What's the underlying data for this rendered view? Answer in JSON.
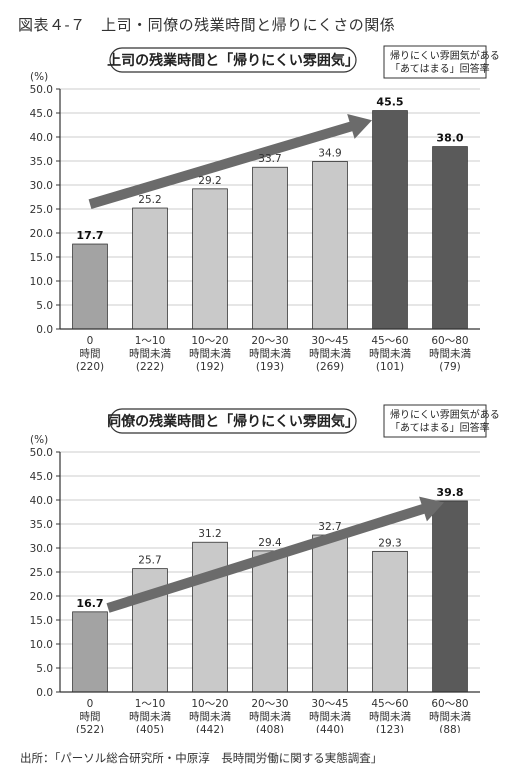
{
  "figure_title": "図表４-７　上司・同僚の残業時間と帰りにくさの関係",
  "source": "出所：「パーソル総合研究所・中原淳　長時間労働に関する実態調査」",
  "colors": {
    "light": "#c9c9c9",
    "medium": "#a3a3a3",
    "dark": "#5a5a5a",
    "arrow": "#6b6b6b",
    "grid": "#9a9a9a",
    "axis": "#333333"
  },
  "chart_data": [
    {
      "type": "bar",
      "title": "上司の残業時間と「帰りにくい雰囲気」",
      "legend": [
        "帰りにくい雰囲気がある",
        "「あてはまる」回答率"
      ],
      "ylabel": "(%)",
      "ylim": [
        0,
        50
      ],
      "ytick_step": 5,
      "categories": [
        [
          "0",
          "時間",
          "(220)"
        ],
        [
          "1〜10",
          "時間未満",
          "(222)"
        ],
        [
          "10〜20",
          "時間未満",
          "(192)"
        ],
        [
          "20〜30",
          "時間未満",
          "(193)"
        ],
        [
          "30〜45",
          "時間未満",
          "(269)"
        ],
        [
          "45〜60",
          "時間未満",
          "(101)"
        ],
        [
          "60〜80",
          "時間未満",
          "(79)"
        ]
      ],
      "values": [
        17.7,
        25.2,
        29.2,
        33.7,
        34.9,
        45.5,
        38.0
      ],
      "value_labels": [
        "17.7",
        "25.2",
        "29.2",
        "33.7",
        "34.9",
        "45.5",
        "38.0"
      ],
      "bar_shades": [
        "medium",
        "light",
        "light",
        "light",
        "light",
        "dark",
        "dark"
      ],
      "bold_labels": [
        true,
        false,
        false,
        false,
        false,
        true,
        true
      ],
      "grid": true,
      "trend_arrow": {
        "from_index": 0,
        "from_value": 26.0,
        "to_index": 4.7,
        "to_value": 43.5
      }
    },
    {
      "type": "bar",
      "title": "同僚の残業時間と「帰りにくい雰囲気」",
      "legend": [
        "帰りにくい雰囲気がある",
        "「あてはまる」回答率"
      ],
      "ylabel": "(%)",
      "ylim": [
        0,
        50
      ],
      "ytick_step": 5,
      "categories": [
        [
          "0",
          "時間",
          "(522)"
        ],
        [
          "1〜10",
          "時間未満",
          "(405)"
        ],
        [
          "10〜20",
          "時間未満",
          "(442)"
        ],
        [
          "20〜30",
          "時間未満",
          "(408)"
        ],
        [
          "30〜45",
          "時間未満",
          "(440)"
        ],
        [
          "45〜60",
          "時間未満",
          "(123)"
        ],
        [
          "60〜80",
          "時間未満",
          "(88)"
        ]
      ],
      "values": [
        16.7,
        25.7,
        31.2,
        29.4,
        32.7,
        29.3,
        39.8
      ],
      "value_labels": [
        "16.7",
        "25.7",
        "31.2",
        "29.4",
        "32.7",
        "29.3",
        "39.8"
      ],
      "bar_shades": [
        "medium",
        "light",
        "light",
        "light",
        "light",
        "light",
        "dark"
      ],
      "bold_labels": [
        true,
        false,
        false,
        false,
        false,
        false,
        true
      ],
      "grid": true,
      "trend_arrow": {
        "from_index": 0.3,
        "from_value": 17.5,
        "to_index": 5.9,
        "to_value": 39.5
      }
    }
  ]
}
